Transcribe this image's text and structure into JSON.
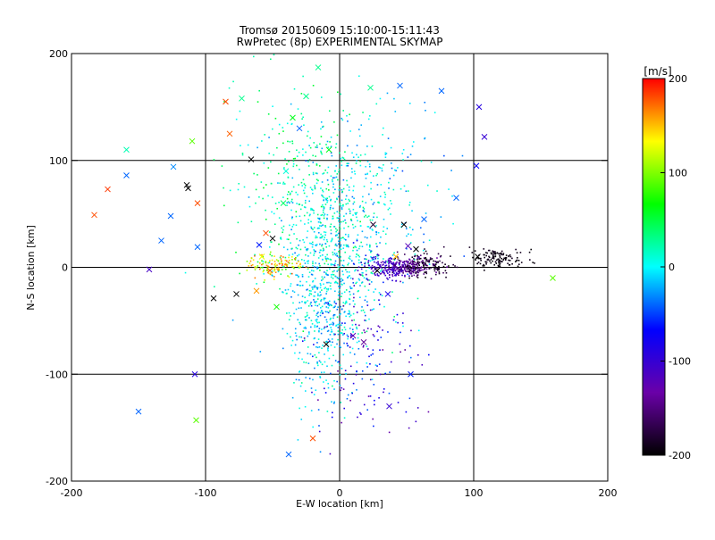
{
  "chart_data": {
    "type": "scatter",
    "title": "Tromsø 20150609 15:10:00-15:11:43",
    "subtitle": "RwPretec (8p) EXPERIMENTAL SKYMAP",
    "xlabel": "E-W location [km]",
    "ylabel": "N-S location [km]",
    "xlim": [
      -200,
      200
    ],
    "ylim": [
      -200,
      200
    ],
    "x_ticks": [
      "-200",
      "-100",
      "0",
      "100",
      "200"
    ],
    "y_ticks": [
      "-200",
      "-100",
      "0",
      "100",
      "200"
    ],
    "grid_lines_x": [
      -100,
      0,
      100
    ],
    "grid_lines_y": [
      -100,
      0,
      100
    ],
    "colorbar": {
      "label": "[m/s]",
      "range": [
        -200,
        200
      ],
      "ticks": [
        "200",
        "100",
        "0",
        "-100",
        "-200"
      ],
      "colors": [
        "#ff0000",
        "#ffff00",
        "#00ff00",
        "#00ffff",
        "#0000ff",
        "#6a00a8",
        "#000000"
      ]
    },
    "series": [
      {
        "marker": "x",
        "points": [
          {
            "x": -183,
            "y": 49,
            "v": 180
          },
          {
            "x": -173,
            "y": 73,
            "v": 185
          },
          {
            "x": -159,
            "y": 110,
            "v": 20
          },
          {
            "x": -159,
            "y": 86,
            "v": -40
          },
          {
            "x": -142,
            "y": -2,
            "v": -110
          },
          {
            "x": -133,
            "y": 25,
            "v": -40
          },
          {
            "x": -124,
            "y": 94,
            "v": -30
          },
          {
            "x": -114,
            "y": 77,
            "v": -200
          },
          {
            "x": -113,
            "y": 74,
            "v": -200
          },
          {
            "x": -110,
            "y": 118,
            "v": 90
          },
          {
            "x": -106,
            "y": 60,
            "v": 180
          },
          {
            "x": -106,
            "y": 19,
            "v": -40
          },
          {
            "x": -108,
            "y": -100,
            "v": -90
          },
          {
            "x": -107,
            "y": -143,
            "v": 90
          },
          {
            "x": -150,
            "y": -135,
            "v": -40
          },
          {
            "x": -94,
            "y": -29,
            "v": -200
          },
          {
            "x": -85,
            "y": 155,
            "v": 180
          },
          {
            "x": -82,
            "y": 125,
            "v": 175
          },
          {
            "x": -77,
            "y": -25,
            "v": -200
          },
          {
            "x": -73,
            "y": 158,
            "v": 30
          },
          {
            "x": -66,
            "y": 101,
            "v": -200
          },
          {
            "x": -60,
            "y": 21,
            "v": -60
          },
          {
            "x": -58,
            "y": 10,
            "v": 130
          },
          {
            "x": -55,
            "y": 32,
            "v": 180
          },
          {
            "x": -50,
            "y": 27,
            "v": -200
          },
          {
            "x": -52,
            "y": -3,
            "v": 175
          },
          {
            "x": -47,
            "y": -37,
            "v": 70
          },
          {
            "x": -42,
            "y": 60,
            "v": 40
          },
          {
            "x": -40,
            "y": 90,
            "v": 10
          },
          {
            "x": -35,
            "y": 140,
            "v": 60
          },
          {
            "x": -30,
            "y": 130,
            "v": -40
          },
          {
            "x": -25,
            "y": 160,
            "v": 30
          },
          {
            "x": -20,
            "y": -160,
            "v": 180
          },
          {
            "x": -16,
            "y": 187,
            "v": 30
          },
          {
            "x": -10,
            "y": -72,
            "v": -200
          },
          {
            "x": -38,
            "y": -175,
            "v": -40
          },
          {
            "x": 10,
            "y": -64,
            "v": -120
          },
          {
            "x": 18,
            "y": -70,
            "v": -140
          },
          {
            "x": 23,
            "y": 168,
            "v": 30
          },
          {
            "x": 25,
            "y": 40,
            "v": -180
          },
          {
            "x": 28,
            "y": -3,
            "v": -200
          },
          {
            "x": 36,
            "y": -25,
            "v": -80
          },
          {
            "x": 48,
            "y": 40,
            "v": -200
          },
          {
            "x": 42,
            "y": 10,
            "v": 150
          },
          {
            "x": 45,
            "y": 170,
            "v": -40
          },
          {
            "x": 53,
            "y": -100,
            "v": -60
          },
          {
            "x": 57,
            "y": 17,
            "v": -200
          },
          {
            "x": 63,
            "y": 45,
            "v": -40
          },
          {
            "x": 76,
            "y": 165,
            "v": -40
          },
          {
            "x": 87,
            "y": 65,
            "v": -40
          },
          {
            "x": 102,
            "y": 95,
            "v": -70
          },
          {
            "x": 104,
            "y": 150,
            "v": -90
          },
          {
            "x": 108,
            "y": 122,
            "v": -100
          },
          {
            "x": 103,
            "y": 10,
            "v": -200
          },
          {
            "x": 159,
            "y": -10,
            "v": 90
          },
          {
            "x": 37,
            "y": -130,
            "v": -100
          },
          {
            "x": 51,
            "y": 20,
            "v": -120
          },
          {
            "x": -126,
            "y": 48,
            "v": -40
          },
          {
            "x": -62,
            "y": -22,
            "v": 160
          },
          {
            "x": -8,
            "y": 110,
            "v": 60
          }
        ]
      },
      {
        "marker": "dot",
        "clusters": [
          {
            "cx": -5,
            "cy": 20,
            "sx": 22,
            "sy": 45,
            "count": 600,
            "v_min": -30,
            "v_max": 40
          },
          {
            "cx": -12,
            "cy": -50,
            "sx": 15,
            "sy": 38,
            "count": 350,
            "v_min": -40,
            "v_max": 20
          },
          {
            "cx": 40,
            "cy": 0,
            "sx": 10,
            "sy": 5,
            "count": 220,
            "v_min": -130,
            "v_max": -90
          },
          {
            "cx": 55,
            "cy": 0,
            "sx": 8,
            "sy": 5,
            "count": 150,
            "v_min": -170,
            "v_max": -130
          },
          {
            "cx": 68,
            "cy": 2,
            "sx": 10,
            "sy": 6,
            "count": 90,
            "v_min": -200,
            "v_max": -170
          },
          {
            "cx": 118,
            "cy": 8,
            "sx": 10,
            "sy": 5,
            "count": 130,
            "v_min": -200,
            "v_max": -185
          },
          {
            "cx": -48,
            "cy": 2,
            "sx": 10,
            "sy": 5,
            "count": 120,
            "v_min": 80,
            "v_max": 180
          },
          {
            "cx": -30,
            "cy": 80,
            "sx": 25,
            "sy": 50,
            "count": 250,
            "v_min": 0,
            "v_max": 60
          },
          {
            "cx": 20,
            "cy": 70,
            "sx": 30,
            "sy": 50,
            "count": 200,
            "v_min": -50,
            "v_max": 20
          },
          {
            "cx": 20,
            "cy": -80,
            "sx": 20,
            "sy": 40,
            "count": 150,
            "v_min": -140,
            "v_max": -40
          }
        ]
      }
    ]
  }
}
